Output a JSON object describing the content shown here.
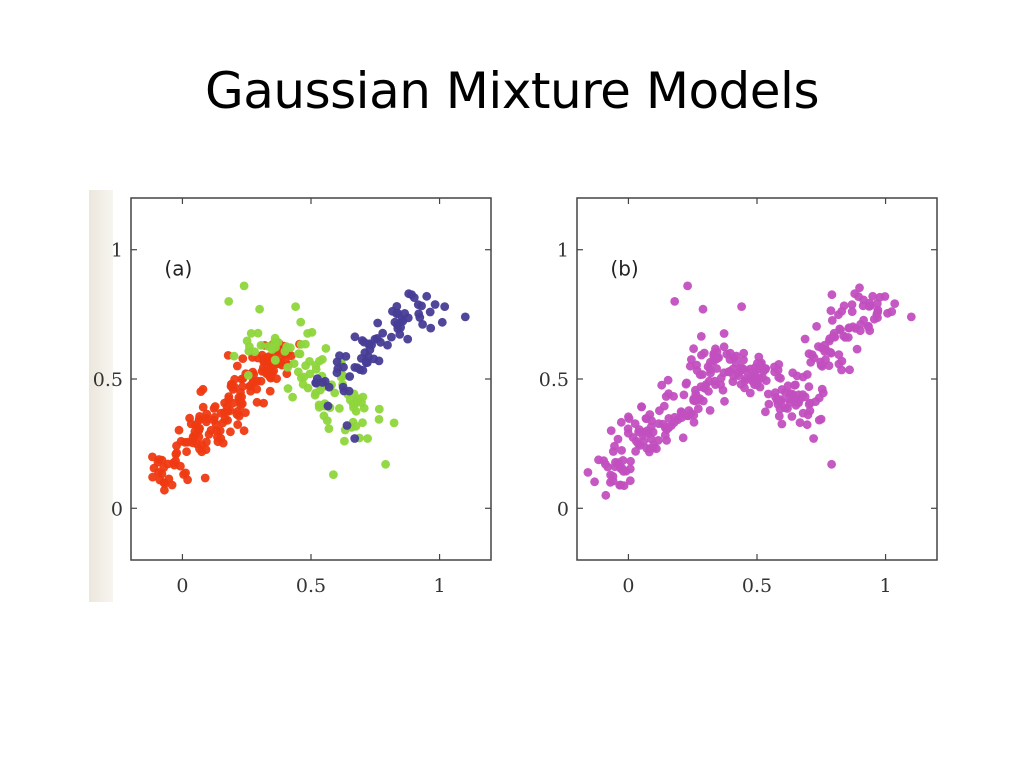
{
  "slide": {
    "title": "Gaussian Mixture Models"
  },
  "chart_data": [
    {
      "type": "scatter",
      "panel_label": "(a)",
      "xlim": [
        -0.2,
        1.2
      ],
      "ylim": [
        -0.2,
        1.2
      ],
      "xticks": [
        0,
        0.5,
        1
      ],
      "yticks": [
        0,
        0.5,
        1
      ],
      "xtick_labels": [
        "0",
        "0.5",
        "1"
      ],
      "ytick_labels": [
        "0",
        "0.5",
        "1"
      ],
      "grid": false,
      "series": [
        {
          "color": "#ee3a12",
          "centers": [
            [
              -0.05,
              0.15
            ],
            [
              0.05,
              0.28
            ],
            [
              0.12,
              0.33
            ],
            [
              0.2,
              0.4
            ],
            [
              0.28,
              0.49
            ],
            [
              0.33,
              0.58
            ],
            [
              0.38,
              0.57
            ]
          ],
          "spread": [
            0.05,
            0.045
          ],
          "count": 165,
          "points": [
            [
              -0.07,
              0.07
            ],
            [
              -0.04,
              0.09
            ],
            [
              0.02,
              0.11
            ],
            [
              0.08,
              0.46
            ],
            [
              0.19,
              0.48
            ],
            [
              0.24,
              0.3
            ],
            [
              0.32,
              0.63
            ],
            [
              0.37,
              0.61
            ]
          ]
        },
        {
          "color": "#8ed63c",
          "centers": [
            [
              0.35,
              0.63
            ],
            [
              0.45,
              0.56
            ],
            [
              0.52,
              0.5
            ],
            [
              0.6,
              0.42
            ],
            [
              0.68,
              0.34
            ]
          ],
          "spread": [
            0.06,
            0.05
          ],
          "count": 90,
          "points": [
            [
              0.24,
              0.86
            ],
            [
              0.18,
              0.8
            ],
            [
              0.3,
              0.77
            ],
            [
              0.44,
              0.78
            ],
            [
              0.46,
              0.72
            ],
            [
              0.79,
              0.17
            ],
            [
              0.63,
              0.26
            ],
            [
              0.72,
              0.27
            ]
          ]
        },
        {
          "color": "#473d96",
          "centers": [
            [
              0.6,
              0.5
            ],
            [
              0.68,
              0.58
            ],
            [
              0.76,
              0.64
            ],
            [
              0.84,
              0.71
            ],
            [
              0.93,
              0.76
            ]
          ],
          "spread": [
            0.045,
            0.045
          ],
          "count": 68,
          "points": [
            [
              0.88,
              0.83
            ],
            [
              0.95,
              0.82
            ],
            [
              1.02,
              0.78
            ],
            [
              1.1,
              0.74
            ],
            [
              0.64,
              0.32
            ],
            [
              0.67,
              0.27
            ]
          ]
        }
      ]
    },
    {
      "type": "scatter",
      "panel_label": "(b)",
      "xlim": [
        -0.2,
        1.2
      ],
      "ylim": [
        -0.2,
        1.2
      ],
      "xticks": [
        0,
        0.5,
        1
      ],
      "yticks": [
        0,
        0.5,
        1
      ],
      "xtick_labels": [
        "0",
        "0.5",
        "1"
      ],
      "ytick_labels": [
        "0",
        "0.5",
        "1"
      ],
      "grid": false,
      "series": [
        {
          "color": "#c24fbf",
          "centers": [
            [
              -0.05,
              0.15
            ],
            [
              0.05,
              0.28
            ],
            [
              0.12,
              0.33
            ],
            [
              0.2,
              0.4
            ],
            [
              0.28,
              0.49
            ],
            [
              0.35,
              0.58
            ],
            [
              0.45,
              0.56
            ],
            [
              0.52,
              0.5
            ],
            [
              0.6,
              0.42
            ],
            [
              0.68,
              0.4
            ],
            [
              0.76,
              0.58
            ],
            [
              0.84,
              0.68
            ],
            [
              0.93,
              0.76
            ]
          ],
          "spread": [
            0.05,
            0.045
          ],
          "count": 320,
          "points": [
            [
              -0.07,
              0.1
            ],
            [
              -0.03,
              0.09
            ],
            [
              0.23,
              0.86
            ],
            [
              0.18,
              0.8
            ],
            [
              0.29,
              0.77
            ],
            [
              0.44,
              0.78
            ],
            [
              0.79,
              0.17
            ],
            [
              0.88,
              0.83
            ],
            [
              0.95,
              0.82
            ],
            [
              1.1,
              0.74
            ],
            [
              0.72,
              0.27
            ]
          ]
        }
      ]
    }
  ]
}
